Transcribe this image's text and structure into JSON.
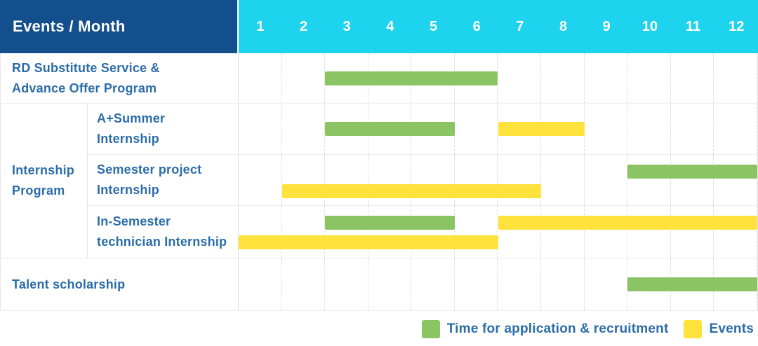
{
  "header": {
    "events_month_label": "Events / Month",
    "months": [
      "1",
      "2",
      "3",
      "4",
      "5",
      "6",
      "7",
      "8",
      "9",
      "10",
      "11",
      "12"
    ]
  },
  "colors": {
    "navy": "#134f8d",
    "cyan": "#1dd3ee",
    "application_green": "#8bc563",
    "events_yellow": "#ffe33c",
    "label_blue": "#2b6ca9"
  },
  "chart_data": {
    "type": "gantt",
    "unit": "month",
    "x_range": [
      1,
      12
    ],
    "rows": [
      {
        "label": "RD Substitute Service &\nAdvance Offer Program",
        "group": null,
        "bars": [
          {
            "type": "application",
            "start": 3,
            "end": 6,
            "track": "center"
          }
        ]
      },
      {
        "label": "A+Summer\nInternship",
        "group": "Internship\nProgram",
        "bars": [
          {
            "type": "application",
            "start": 3,
            "end": 5,
            "track": "center"
          },
          {
            "type": "events",
            "start": 7,
            "end": 8,
            "track": "center"
          }
        ]
      },
      {
        "label": "Semester project\nInternship",
        "group": "Internship\nProgram",
        "bars": [
          {
            "type": "application",
            "start": 10,
            "end": 12,
            "track": "top"
          },
          {
            "type": "events",
            "start": 2,
            "end": 7,
            "track": "bottom"
          }
        ]
      },
      {
        "label": "In-Semester\ntechnician Internship",
        "group": "Internship\nProgram",
        "bars": [
          {
            "type": "application",
            "start": 3,
            "end": 5,
            "track": "top"
          },
          {
            "type": "events",
            "start": 7,
            "end": 12,
            "track": "top"
          },
          {
            "type": "events",
            "start": 1,
            "end": 6,
            "track": "bottom"
          }
        ]
      },
      {
        "label": "Talent scholarship",
        "group": null,
        "bars": [
          {
            "type": "application",
            "start": 10,
            "end": 12,
            "track": "center"
          }
        ]
      }
    ],
    "legend": [
      {
        "type": "application",
        "label": "Time for application & recruitment"
      },
      {
        "type": "events",
        "label": "Events"
      }
    ]
  }
}
